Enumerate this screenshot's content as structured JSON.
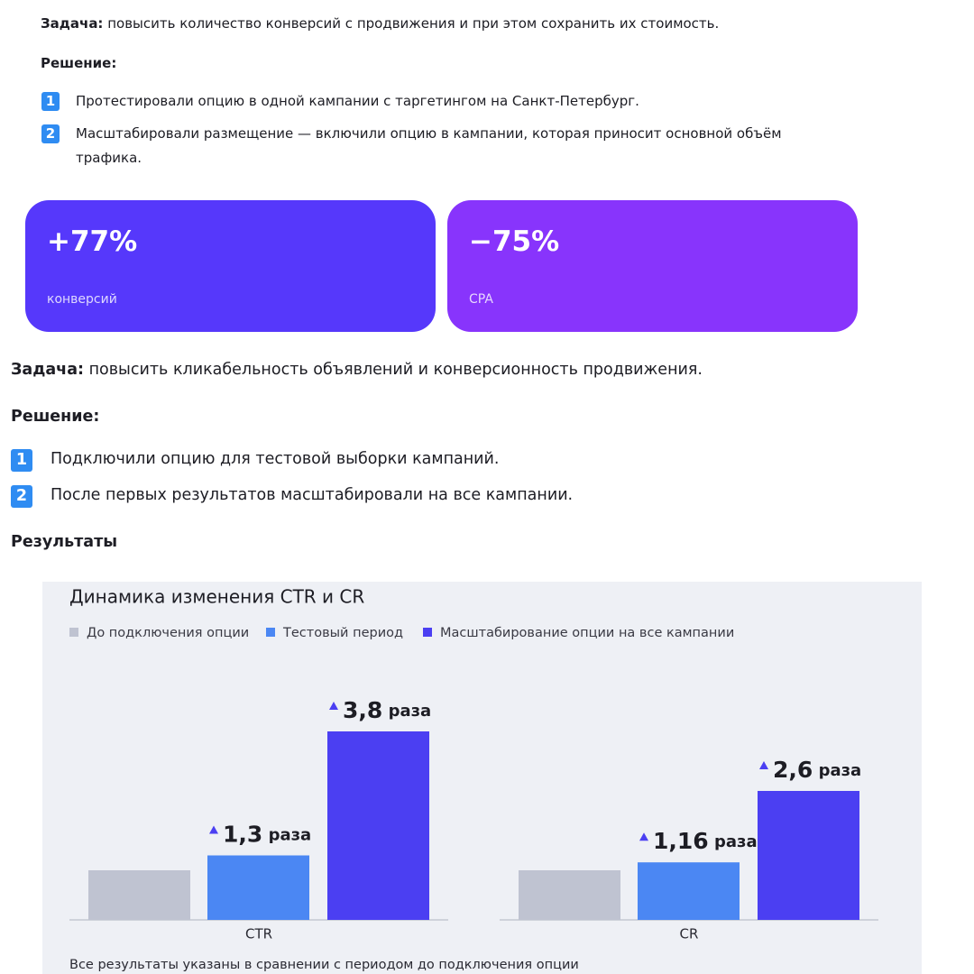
{
  "sections": [
    {
      "task_label": "Задача:",
      "task": "повысить количество конверсий с продвижения и при этом сохранить их стоимость.",
      "solution_label": "Решение:",
      "steps": [
        {
          "number": "1",
          "text": "Протестировали опцию в одной кампании с таргетингом на Санкт-Петербург."
        },
        {
          "number": "2",
          "text": "Масштабировали размещение — включили опцию в кампании, которая приносит основной объём трафика."
        }
      ],
      "results": [
        {
          "value": "+77%",
          "label": "конверсий"
        },
        {
          "value": "−75%",
          "label": "CPA"
        }
      ]
    },
    {
      "task_label": "Задача:",
      "task": "повысить кликабельность объявлений и конверсионность продвижения.",
      "solution_label": "Решение:",
      "steps": [
        {
          "number": "1",
          "text": "Подключили опцию для тестовой выборки кампаний."
        },
        {
          "number": "2",
          "text": "После первых результатов масштабировали на все кампании."
        }
      ],
      "results_title": "Результаты"
    }
  ],
  "chart_data": {
    "type": "bar",
    "title": "Динамика изменения CTR и CR",
    "categories": [
      "CTR",
      "CR"
    ],
    "series": [
      {
        "name": "До подключения опции",
        "color": "#bfc3d1",
        "values": [
          1,
          1
        ]
      },
      {
        "name": "Тестовый период",
        "color": "#4b87f3",
        "values": [
          1.3,
          1.16
        ],
        "value_labels": [
          "1,3 раза",
          "1,16 раза"
        ]
      },
      {
        "name": "Масштабирование опции на все кампании",
        "color": "#4b3ff2",
        "values": [
          3.8,
          2.6
        ],
        "value_labels": [
          "3,8 раза",
          "2,6 раза"
        ]
      }
    ],
    "note": "Все результаты указаны в сравнении с периодом до подключения опции"
  }
}
